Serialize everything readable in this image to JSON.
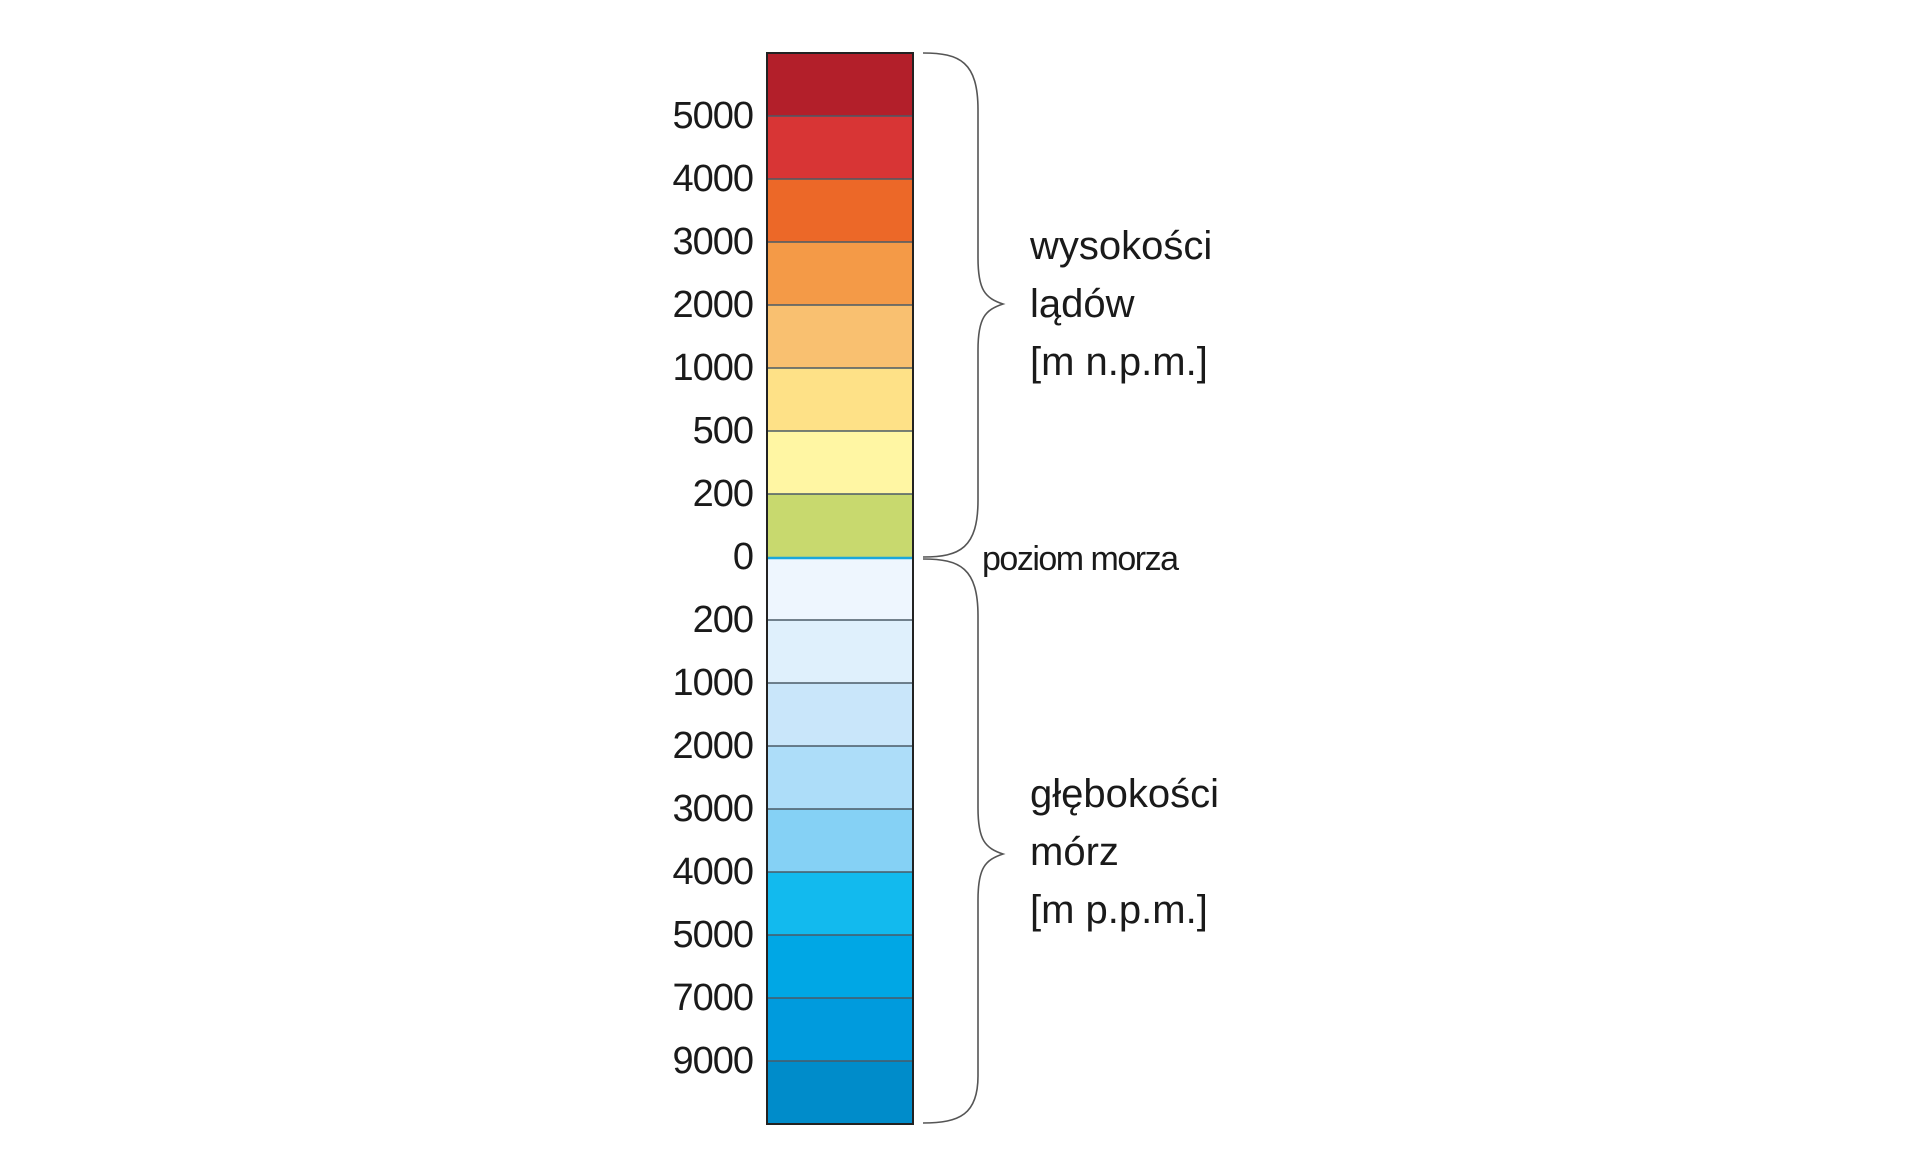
{
  "scale": {
    "bands": [
      {
        "color": "#B31F2A"
      },
      {
        "color": "#D83535"
      },
      {
        "color": "#EC6828"
      },
      {
        "color": "#F49A47"
      },
      {
        "color": "#F9C070"
      },
      {
        "color": "#FEE187"
      },
      {
        "color": "#FFF6A3"
      },
      {
        "color": "#C8D96E"
      },
      {
        "color": "#EEF6FE"
      },
      {
        "color": "#DFF0FC"
      },
      {
        "color": "#C9E6FA"
      },
      {
        "color": "#ADDDF9"
      },
      {
        "color": "#85D1F5"
      },
      {
        "color": "#12BAEE"
      },
      {
        "color": "#00A7E5"
      },
      {
        "color": "#009BDD"
      },
      {
        "color": "#008CCA"
      }
    ],
    "boundary_labels": [
      "5000",
      "4000",
      "3000",
      "2000",
      "1000",
      "500",
      "200",
      "0",
      "200",
      "1000",
      "2000",
      "3000",
      "4000",
      "5000",
      "7000",
      "9000"
    ],
    "sea_level_color": "#1AA7DB"
  },
  "land_group": {
    "lines": [
      "wysokości",
      "lądów",
      "[m n.p.m.]"
    ]
  },
  "sea_level_label": "poziom morza",
  "sea_group": {
    "lines": [
      "głębokości",
      "mórz",
      "[m p.p.m.]"
    ]
  }
}
